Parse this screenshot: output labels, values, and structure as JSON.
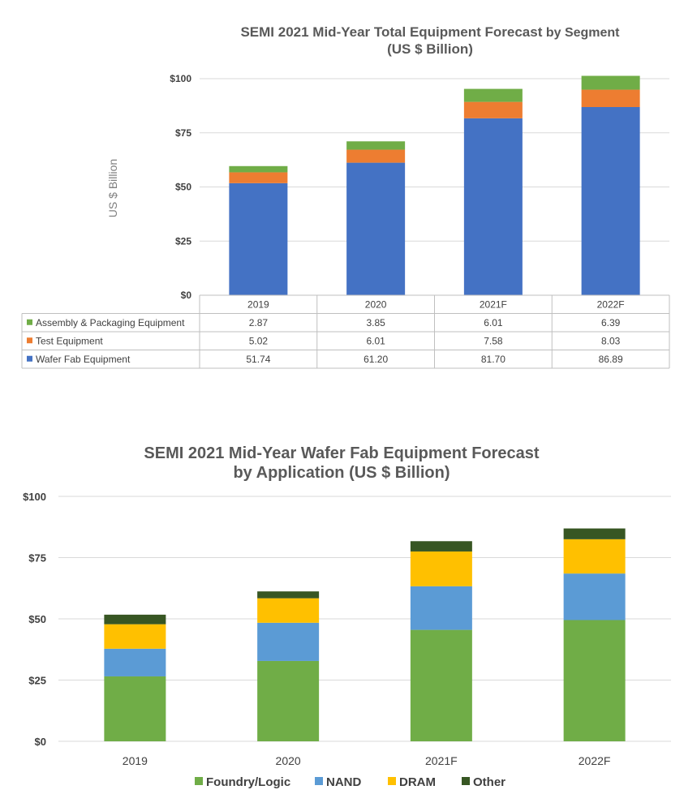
{
  "chart_data": [
    {
      "type": "bar",
      "stacked": true,
      "title_line1": "SEMI 2021 Mid-Year Total Equipment Forecast",
      "title_line1_suffix": " by Segment",
      "title_line2": "(US $ Billion)",
      "ylabel": "US $ Billion",
      "ylim": [
        0,
        100
      ],
      "ytick_labels": [
        "$0",
        "$25",
        "$50",
        "$75",
        "$100"
      ],
      "ytick_values": [
        0,
        25,
        50,
        75,
        100
      ],
      "grid": true,
      "legend": "data-table",
      "categories": [
        "2019",
        "2020",
        "2021F",
        "2022F"
      ],
      "series": [
        {
          "name": "Wafer Fab Equipment",
          "values": [
            51.74,
            61.2,
            81.7,
            86.89
          ],
          "color": "#4472C4",
          "labels": [
            "51.74",
            "61.20",
            "81.70",
            "86.89"
          ]
        },
        {
          "name": "Test Equipment",
          "values": [
            5.02,
            6.01,
            7.58,
            8.03
          ],
          "color": "#ED7D31",
          "labels": [
            "5.02",
            "6.01",
            "7.58",
            "8.03"
          ]
        },
        {
          "name": "Assembly & Packaging Equipment",
          "values": [
            2.87,
            3.85,
            6.01,
            6.39
          ],
          "color": "#70AD47",
          "labels": [
            "2.87",
            "3.85",
            "6.01",
            "6.39"
          ]
        }
      ]
    },
    {
      "type": "bar",
      "stacked": true,
      "title_line1": "SEMI 2021 Mid-Year Wafer Fab Equipment Forecast",
      "title_line2": "by Application (US $ Billion)",
      "ylim": [
        0,
        100
      ],
      "ytick_labels": [
        "$0",
        "$25",
        "$50",
        "$75",
        "$100"
      ],
      "ytick_values": [
        0,
        25,
        50,
        75,
        100
      ],
      "grid": true,
      "legend": "bottom",
      "categories": [
        "2019",
        "2020",
        "2021F",
        "2022F"
      ],
      "series": [
        {
          "name": "Foundry/Logic",
          "values": [
            26.5,
            32.8,
            45.5,
            49.5
          ],
          "color": "#70AD47"
        },
        {
          "name": "NAND",
          "values": [
            11.3,
            15.6,
            17.8,
            19.0
          ],
          "color": "#5B9BD5"
        },
        {
          "name": "DRAM",
          "values": [
            10.0,
            10.0,
            14.2,
            14.0
          ],
          "color": "#FFC000"
        },
        {
          "name": "Other",
          "values": [
            3.9,
            2.8,
            4.2,
            4.4
          ],
          "color": "#375623"
        }
      ]
    }
  ]
}
